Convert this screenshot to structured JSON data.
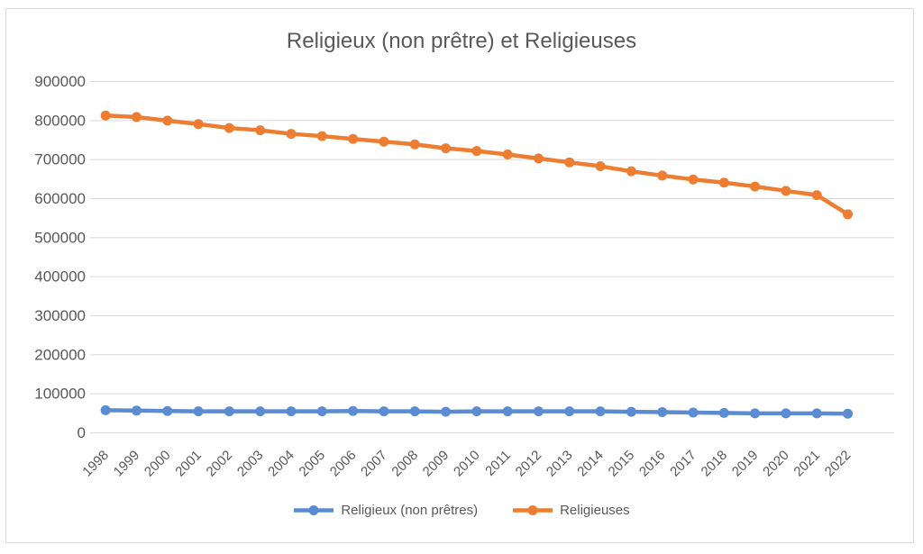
{
  "window": {
    "background": "#FFFFFF",
    "border_color": "#D9D9D9"
  },
  "chart_data": {
    "type": "line",
    "title": "Religieux (non prêtre) et Religieuses",
    "categories": [
      "1998",
      "1999",
      "2000",
      "2001",
      "2002",
      "2003",
      "2004",
      "2005",
      "2006",
      "2007",
      "2008",
      "2009",
      "2010",
      "2011",
      "2012",
      "2013",
      "2014",
      "2015",
      "2016",
      "2017",
      "2018",
      "2019",
      "2020",
      "2021",
      "2022"
    ],
    "series": [
      {
        "name": "Religieux (non prêtres)",
        "color": "#5B8BD0",
        "values": [
          58000,
          57000,
          56000,
          55000,
          55000,
          55000,
          55000,
          55000,
          56000,
          55000,
          55000,
          54000,
          55000,
          55000,
          55000,
          55000,
          55000,
          54000,
          53000,
          52000,
          51000,
          50000,
          50000,
          50000,
          49000
        ]
      },
      {
        "name": "Religieuses",
        "color": "#ED7D31",
        "values": [
          813000,
          809000,
          800000,
          791000,
          781000,
          775000,
          766000,
          760000,
          753000,
          746000,
          739000,
          729000,
          722000,
          713000,
          703000,
          693000,
          683000,
          670000,
          659000,
          649000,
          641000,
          631000,
          620000,
          609000,
          560000
        ]
      }
    ],
    "xlabel": "",
    "ylabel": "",
    "ylim": [
      0,
      900000
    ],
    "ytick_step": 100000,
    "grid": true,
    "gridline_color": "#D9D9D9",
    "text_color": "#595959",
    "legend_position": "bottom"
  }
}
